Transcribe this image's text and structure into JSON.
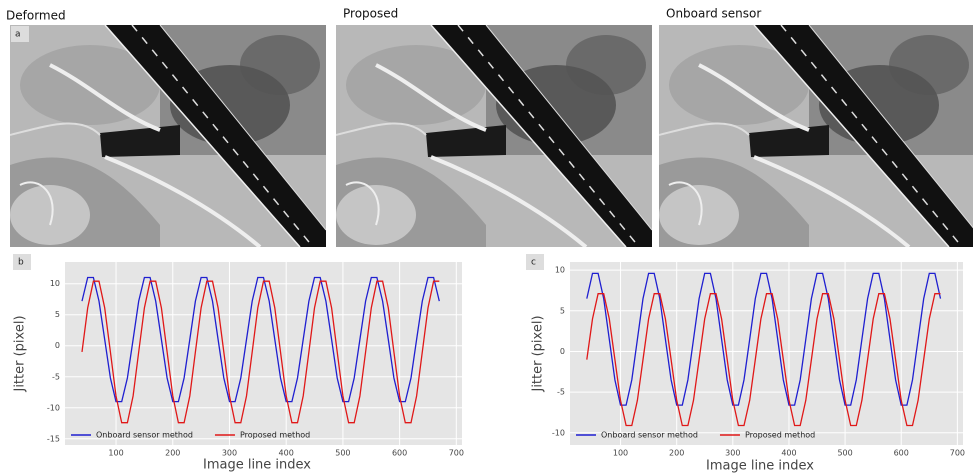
{
  "figure": {
    "image_titles": [
      "Deformed",
      "Proposed",
      "Onboard sensor"
    ],
    "image_panel_label": "a"
  },
  "chart_data": [
    {
      "type": "line",
      "panel_label": "b",
      "xlabel": "Image line index",
      "ylabel": "Jitter (pixel)",
      "x": [
        40,
        50,
        60,
        70,
        80,
        90,
        100,
        110,
        120,
        130,
        140,
        150,
        160,
        170,
        180,
        190,
        200,
        210,
        220,
        230,
        240,
        250,
        260,
        270,
        280,
        290,
        300,
        310,
        320,
        330,
        340,
        350,
        360,
        370,
        380,
        390,
        400,
        410,
        420,
        430,
        440,
        450,
        460,
        470,
        480,
        490,
        500,
        510,
        520,
        530,
        540,
        550,
        560,
        570,
        580,
        590,
        600,
        610,
        620,
        630,
        640,
        650,
        660,
        670
      ],
      "xlim": [
        10,
        710
      ],
      "xticks": [
        100,
        200,
        300,
        400,
        500,
        600,
        700
      ],
      "ylim": [
        -16,
        13.5
      ],
      "yticks": [
        -15,
        -10,
        -5,
        0,
        5,
        10
      ],
      "grid": true,
      "legend": "lower left",
      "series": [
        {
          "name": "Onboard sensor method",
          "color": "#1f1fd0",
          "values": [
            7.2,
            11,
            11,
            7.2,
            1,
            -5.2,
            -9,
            -9,
            -5.2,
            1,
            7.2,
            11,
            11,
            7.2,
            1,
            -5.2,
            -9,
            -9,
            -5.2,
            1,
            7.2,
            11,
            11,
            7.2,
            1,
            -5.2,
            -9,
            -9,
            -5.2,
            1,
            7.2,
            11,
            11,
            7.2,
            1,
            -5.2,
            -9,
            -9,
            -5.2,
            1,
            7.2,
            11,
            11,
            7.2,
            1,
            -5.2,
            -9,
            -9,
            -5.2,
            1,
            7.2,
            11,
            11,
            7.2,
            1,
            -5.2,
            -9,
            -9,
            -5.2,
            1,
            7.2,
            11,
            11,
            7.2
          ]
        },
        {
          "name": "Proposed method",
          "color": "#e01818",
          "values": [
            -1,
            6.1,
            10.4,
            10.4,
            6.1,
            -1,
            -8.1,
            -12.4,
            -12.4,
            -8.1,
            -1,
            6.1,
            10.4,
            10.4,
            6.1,
            -1,
            -8.1,
            -12.4,
            -12.4,
            -8.1,
            -1,
            6.1,
            10.4,
            10.4,
            6.1,
            -1,
            -8.1,
            -12.4,
            -12.4,
            -8.1,
            -1,
            6.1,
            10.4,
            10.4,
            6.1,
            -1,
            -8.1,
            -12.4,
            -12.4,
            -8.1,
            -1,
            6.1,
            10.4,
            10.4,
            6.1,
            -1,
            -8.1,
            -12.4,
            -12.4,
            -8.1,
            -1,
            6.1,
            10.4,
            10.4,
            6.1,
            -1,
            -8.1,
            -12.4,
            -12.4,
            -8.1,
            -1,
            6.1,
            10.4,
            10.4
          ]
        }
      ]
    },
    {
      "type": "line",
      "panel_label": "c",
      "xlabel": "Image line index",
      "ylabel": "Jitter (pixel)",
      "x": [
        40,
        50,
        60,
        70,
        80,
        90,
        100,
        110,
        120,
        130,
        140,
        150,
        160,
        170,
        180,
        190,
        200,
        210,
        220,
        230,
        240,
        250,
        260,
        270,
        280,
        290,
        300,
        310,
        320,
        330,
        340,
        350,
        360,
        370,
        380,
        390,
        400,
        410,
        420,
        430,
        440,
        450,
        460,
        470,
        480,
        490,
        500,
        510,
        520,
        530,
        540,
        550,
        560,
        570,
        580,
        590,
        600,
        610,
        620,
        630,
        640,
        650,
        660,
        670
      ],
      "xlim": [
        10,
        710
      ],
      "xticks": [
        100,
        200,
        300,
        400,
        500,
        600,
        700
      ],
      "ylim": [
        -11.5,
        11
      ],
      "yticks": [
        -10,
        -5,
        0,
        5,
        10
      ],
      "grid": true,
      "legend": "lower left",
      "series": [
        {
          "name": "Onboard sensor method",
          "color": "#1f1fd0",
          "values": [
            6.5,
            9.6,
            9.6,
            6.5,
            1.5,
            -3.5,
            -6.6,
            -6.6,
            -3.5,
            1.5,
            6.5,
            9.6,
            9.6,
            6.5,
            1.5,
            -3.5,
            -6.6,
            -6.6,
            -3.5,
            1.5,
            6.5,
            9.6,
            9.6,
            6.5,
            1.5,
            -3.5,
            -6.6,
            -6.6,
            -3.5,
            1.5,
            6.5,
            9.6,
            9.6,
            6.5,
            1.5,
            -3.5,
            -6.6,
            -6.6,
            -3.5,
            1.5,
            6.5,
            9.6,
            9.6,
            6.5,
            1.5,
            -3.5,
            -6.6,
            -6.6,
            -3.5,
            1.5,
            6.5,
            9.6,
            9.6,
            6.5,
            1.5,
            -3.5,
            -6.6,
            -6.6,
            -3.5,
            1.5,
            6.5,
            9.6,
            9.6,
            6.5
          ]
        },
        {
          "name": "Proposed method",
          "color": "#e01818",
          "values": [
            -1,
            4,
            7.1,
            7.1,
            4,
            -1,
            -6,
            -9.1,
            -9.1,
            -6,
            -1,
            4,
            7.1,
            7.1,
            4,
            -1,
            -6,
            -9.1,
            -9.1,
            -6,
            -1,
            4,
            7.1,
            7.1,
            4,
            -1,
            -6,
            -9.1,
            -9.1,
            -6,
            -1,
            4,
            7.1,
            7.1,
            4,
            -1,
            -6,
            -9.1,
            -9.1,
            -6,
            -1,
            4,
            7.1,
            7.1,
            4,
            -1,
            -6,
            -9.1,
            -9.1,
            -6,
            -1,
            4,
            7.1,
            7.1,
            4,
            -1,
            -6,
            -9.1,
            -9.1,
            -6,
            -1,
            4,
            7.1,
            7.1
          ]
        }
      ]
    }
  ]
}
